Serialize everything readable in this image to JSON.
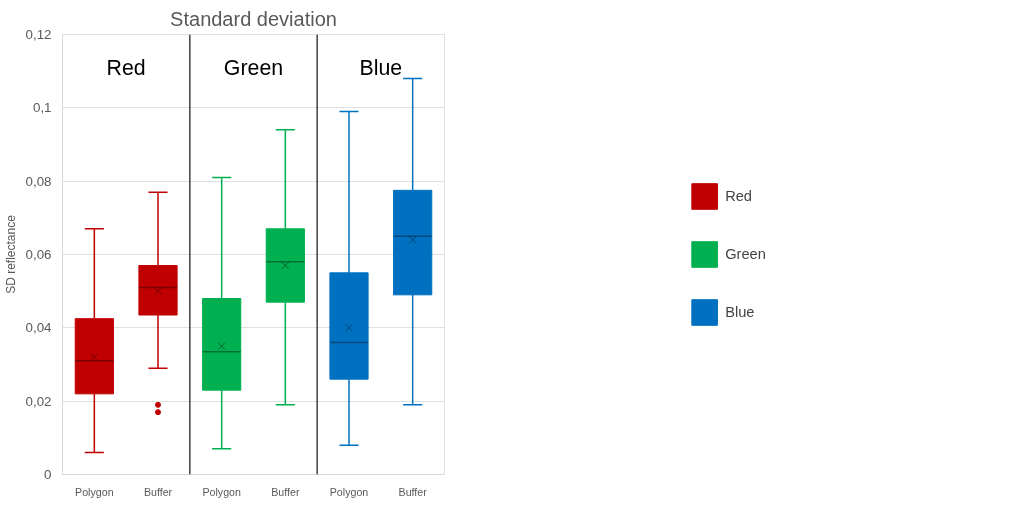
{
  "chart_data": {
    "type": "box",
    "title": "Standard deviation",
    "ylabel": "SD reflectance",
    "categories": [
      "Polygon",
      "Buffer",
      "Polygon",
      "Buffer",
      "Polygon",
      "Buffer"
    ],
    "series": [
      {
        "name": "Red",
        "color": "#c00000",
        "boxes": [
          {
            "low": 0.006,
            "q1": 0.022,
            "median": 0.031,
            "q3": 0.0425,
            "high": 0.067,
            "mean": 0.032
          },
          {
            "low": 0.029,
            "q1": 0.0435,
            "median": 0.051,
            "q3": 0.057,
            "high": 0.077,
            "mean": 0.05,
            "outliers": [
              0.019,
              0.017
            ]
          },
          null,
          null,
          null,
          null
        ]
      },
      {
        "name": "Green",
        "color": "#00b050",
        "boxes": [
          null,
          null,
          {
            "low": 0.007,
            "q1": 0.023,
            "median": 0.0335,
            "q3": 0.048,
            "high": 0.081,
            "mean": 0.035
          },
          {
            "low": 0.019,
            "q1": 0.047,
            "median": 0.058,
            "q3": 0.067,
            "high": 0.094,
            "mean": 0.057
          },
          null,
          null
        ]
      },
      {
        "name": "Blue",
        "color": "#0070c0",
        "boxes": [
          null,
          null,
          null,
          null,
          {
            "low": 0.008,
            "q1": 0.026,
            "median": 0.036,
            "q3": 0.055,
            "high": 0.099,
            "mean": 0.04
          },
          {
            "low": 0.019,
            "q1": 0.049,
            "median": 0.065,
            "q3": 0.0775,
            "high": 0.108,
            "mean": 0.064
          }
        ]
      }
    ],
    "annotations": [
      "Red",
      "Green",
      "Blue"
    ],
    "ylim": [
      0,
      0.12
    ],
    "yticks": [
      {
        "value": 0,
        "label": "0"
      },
      {
        "value": 0.02,
        "label": "0,02"
      },
      {
        "value": 0.04,
        "label": "0,04"
      },
      {
        "value": 0.06,
        "label": "0,06"
      },
      {
        "value": 0.08,
        "label": "0,08"
      },
      {
        "value": 0.1,
        "label": "0,1"
      },
      {
        "value": 0.12,
        "label": "0,12"
      }
    ],
    "grid": "y",
    "legend": "right",
    "marker": "cross"
  }
}
